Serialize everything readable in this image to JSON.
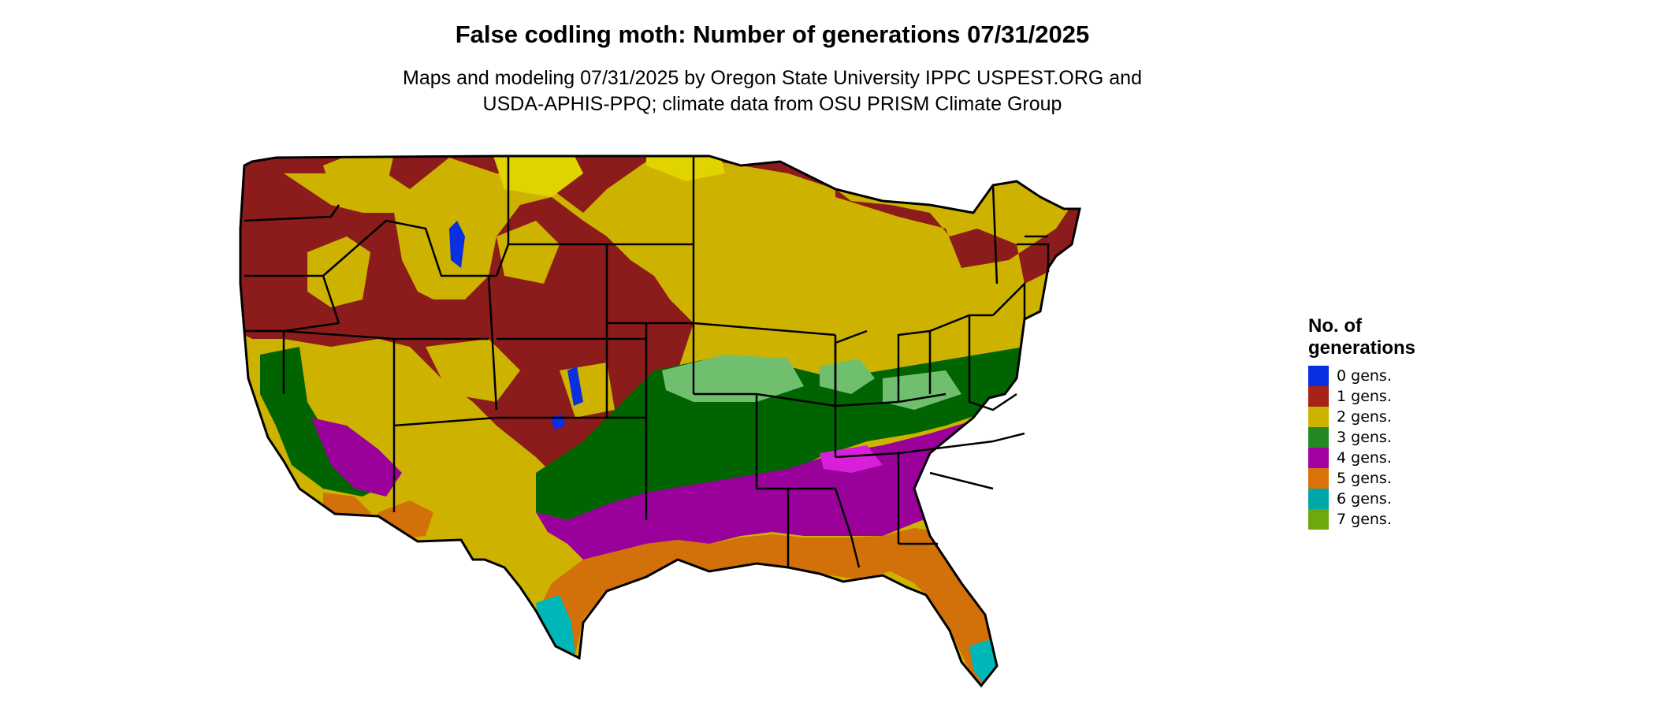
{
  "title": "False codling moth: Number of generations 07/31/2025",
  "subtitle_lines": [
    "Maps and modeling 07/31/2025 by Oregon State University IPPC USPEST.ORG and",
    "USDA-APHIS-PPQ; climate data from OSU PRISM Climate Group"
  ],
  "legend": {
    "title_lines": [
      "No. of",
      "generations"
    ],
    "items": [
      {
        "label": "0 gens.",
        "color": "#0a2fe0"
      },
      {
        "label": "1 gens.",
        "color": "#a52319"
      },
      {
        "label": "2 gens.",
        "color": "#cdb200"
      },
      {
        "label": "3 gens.",
        "color": "#238a23"
      },
      {
        "label": "4 gens.",
        "color": "#a400a4"
      },
      {
        "label": "5 gens.",
        "color": "#d9720a"
      },
      {
        "label": "6 gens.",
        "color": "#00a7a7"
      },
      {
        "label": "7 gens.",
        "color": "#6fa80c"
      }
    ]
  },
  "map_colors": {
    "one_gen": "#8c1b1b",
    "two_gen": "#cdb200",
    "two_gen_light": "#e0d300",
    "three_gen": "#006400",
    "three_gen_light": "#6fbf6f",
    "four_gen": "#9a009a",
    "four_gen_light": "#d91fd9",
    "five_gen": "#d2700a",
    "six_gen": "#00b7b7",
    "zero_gen": "#0a2fe0"
  }
}
